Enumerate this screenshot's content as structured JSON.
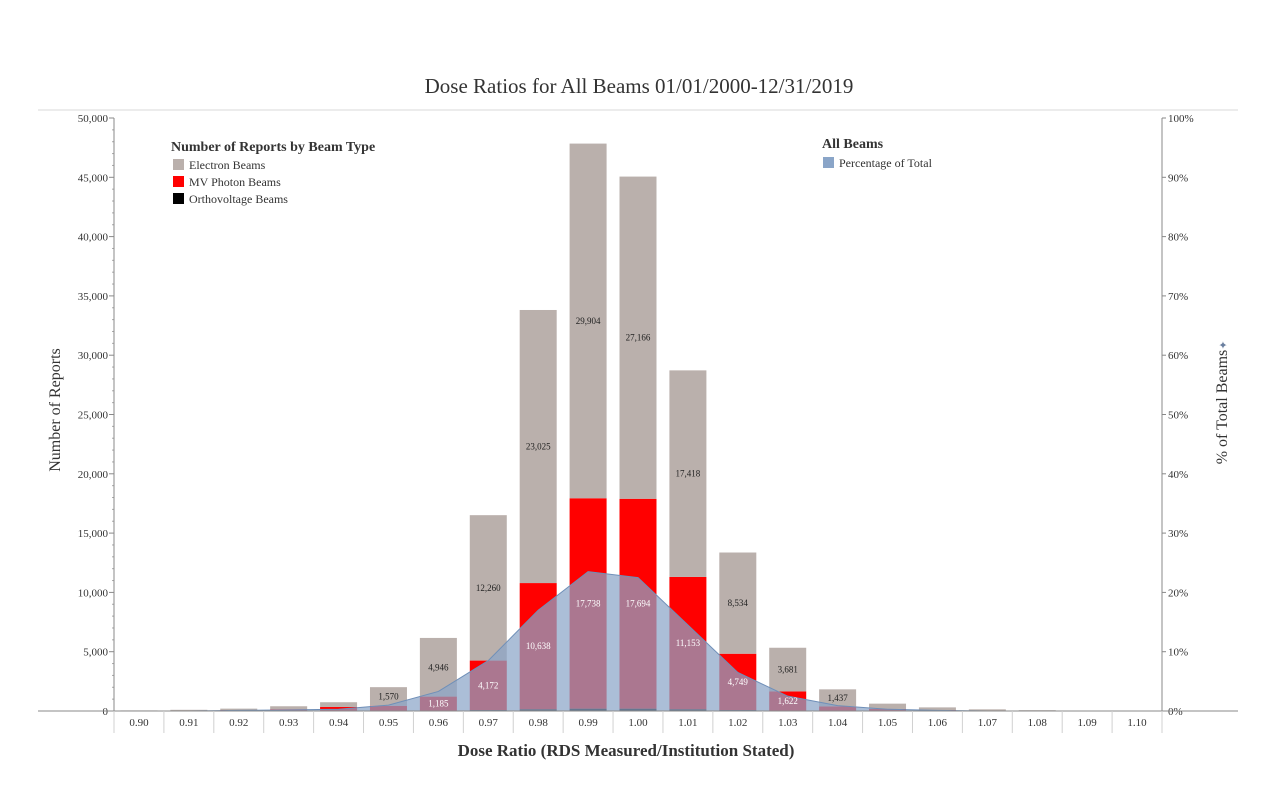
{
  "chart_data": {
    "type": "bar",
    "title": "Dose Ratios for All Beams 01/01/2000-12/31/2019",
    "xlabel": "Dose Ratio (RDS Measured/Institution Stated)",
    "ylabel": "Number of Reports",
    "y2label": "% of Total Beams",
    "ylim": [
      0,
      50000
    ],
    "y2lim": [
      0,
      100
    ],
    "yticks": [
      "0",
      "5,000",
      "10,000",
      "15,000",
      "20,000",
      "25,000",
      "30,000",
      "35,000",
      "40,000",
      "45,000",
      "50,000"
    ],
    "y2ticks": [
      "0%",
      "10%",
      "20%",
      "30%",
      "40%",
      "50%",
      "60%",
      "70%",
      "80%",
      "90%",
      "100%"
    ],
    "categories": [
      "0.90",
      "0.91",
      "0.92",
      "0.93",
      "0.94",
      "0.95",
      "0.96",
      "0.97",
      "0.98",
      "0.99",
      "1.00",
      "1.01",
      "1.02",
      "1.03",
      "1.04",
      "1.05",
      "1.06",
      "1.07",
      "1.08",
      "1.09",
      "1.10"
    ],
    "series": [
      {
        "name": "Orthovoltage Beams",
        "color": "#000000",
        "values": [
          0,
          0,
          0,
          0,
          10,
          20,
          30,
          80,
          150,
          200,
          200,
          150,
          80,
          30,
          20,
          10,
          5,
          0,
          0,
          0,
          0
        ]
      },
      {
        "name": "MV Photon Beams",
        "color": "#ff0000",
        "values": [
          20,
          40,
          80,
          150,
          330,
          420,
          1185,
          4172,
          10638,
          17738,
          17694,
          11153,
          4749,
          1622,
          370,
          160,
          80,
          40,
          20,
          10,
          5
        ],
        "labels": [
          "",
          "",
          "",
          "",
          "",
          "",
          "1,185",
          "4,172",
          "10,638",
          "17,738",
          "17,694",
          "11,153",
          "4,749",
          "1,622",
          "",
          "",
          "",
          "",
          "",
          "",
          ""
        ]
      },
      {
        "name": "Electron Beams",
        "color": "#bab0ac",
        "values": [
          30,
          60,
          120,
          250,
          400,
          1570,
          4946,
          12260,
          23025,
          29904,
          27166,
          17418,
          8534,
          3681,
          1437,
          450,
          220,
          100,
          50,
          25,
          10
        ],
        "labels": [
          "",
          "",
          "",
          "",
          "",
          "1,570",
          "4,946",
          "12,260",
          "23,025",
          "29,904",
          "27,166",
          "17,418",
          "8,534",
          "3,681",
          "1,437",
          "",
          "",
          "",
          "",
          "",
          ""
        ]
      },
      {
        "name": "Percentage of Total",
        "color": "#8aa5c8",
        "axis": "right",
        "values": [
          0.0,
          0.0,
          0.1,
          0.2,
          0.3,
          1.0,
          3.3,
          8.5,
          17.0,
          23.5,
          22.5,
          14.5,
          6.5,
          2.5,
          0.9,
          0.3,
          0.1,
          0.0,
          0.0,
          0.0,
          0.0
        ]
      }
    ]
  },
  "legend_left": {
    "title": "Number of Reports by Beam Type",
    "items": [
      {
        "label": "Electron Beams",
        "color": "#bab0ac"
      },
      {
        "label": "MV Photon Beams",
        "color": "#ff0000"
      },
      {
        "label": "Orthovoltage Beams",
        "color": "#000000"
      }
    ]
  },
  "legend_right": {
    "title": "All Beams",
    "items": [
      {
        "label": "Percentage of Total",
        "color": "#8aa5c8"
      }
    ]
  },
  "y2_axis_marker": "✦"
}
